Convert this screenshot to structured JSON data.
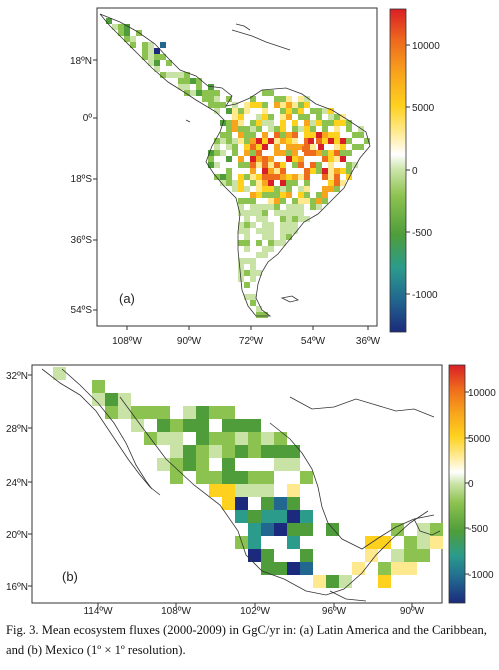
{
  "caption": "Fig. 3. Mean ecosystem fluxes (2000-2009) in GgC/yr in: (a) Latin America and the Caribbean, and (b) Mexico (1º × 1º resolution).",
  "colors": {
    "scale": [
      "#1b2a7c",
      "#21678f",
      "#2b9c8c",
      "#4e9d3a",
      "#8cc24f",
      "#c9e3a6",
      "#ffffff",
      "#ffe98e",
      "#ffd11f",
      "#f8a41c",
      "#ee6b1d",
      "#d91f26"
    ]
  },
  "chart_data": [
    {
      "type": "heatmap",
      "panel_label": "(a)",
      "title": "",
      "xlabel": "",
      "ylabel": "",
      "x_ticks": [
        "108ºW",
        "90ºW",
        "72ºW",
        "54ºW",
        "36ºW"
      ],
      "y_ticks": [
        "18ºN",
        "0º",
        "18ºS",
        "36ºS",
        "54ºS"
      ],
      "colorbar_ticks": [
        "10000",
        "5000",
        "0",
        "-500",
        "-1000"
      ],
      "colorbar_range": [
        -1300,
        13000
      ]
    },
    {
      "type": "heatmap",
      "panel_label": "(b)",
      "title": "",
      "xlabel": "",
      "ylabel": "",
      "x_ticks": [
        "114ºW",
        "108ºW",
        "102ºW",
        "96ºW",
        "90ºW"
      ],
      "y_ticks": [
        "32ºN",
        "28ºN",
        "24ºN",
        "20ºN",
        "16ºN"
      ],
      "colorbar_ticks": [
        "10000",
        "5000",
        "0",
        "-500",
        "-1000"
      ],
      "colorbar_range": [
        -1300,
        13000
      ]
    }
  ]
}
